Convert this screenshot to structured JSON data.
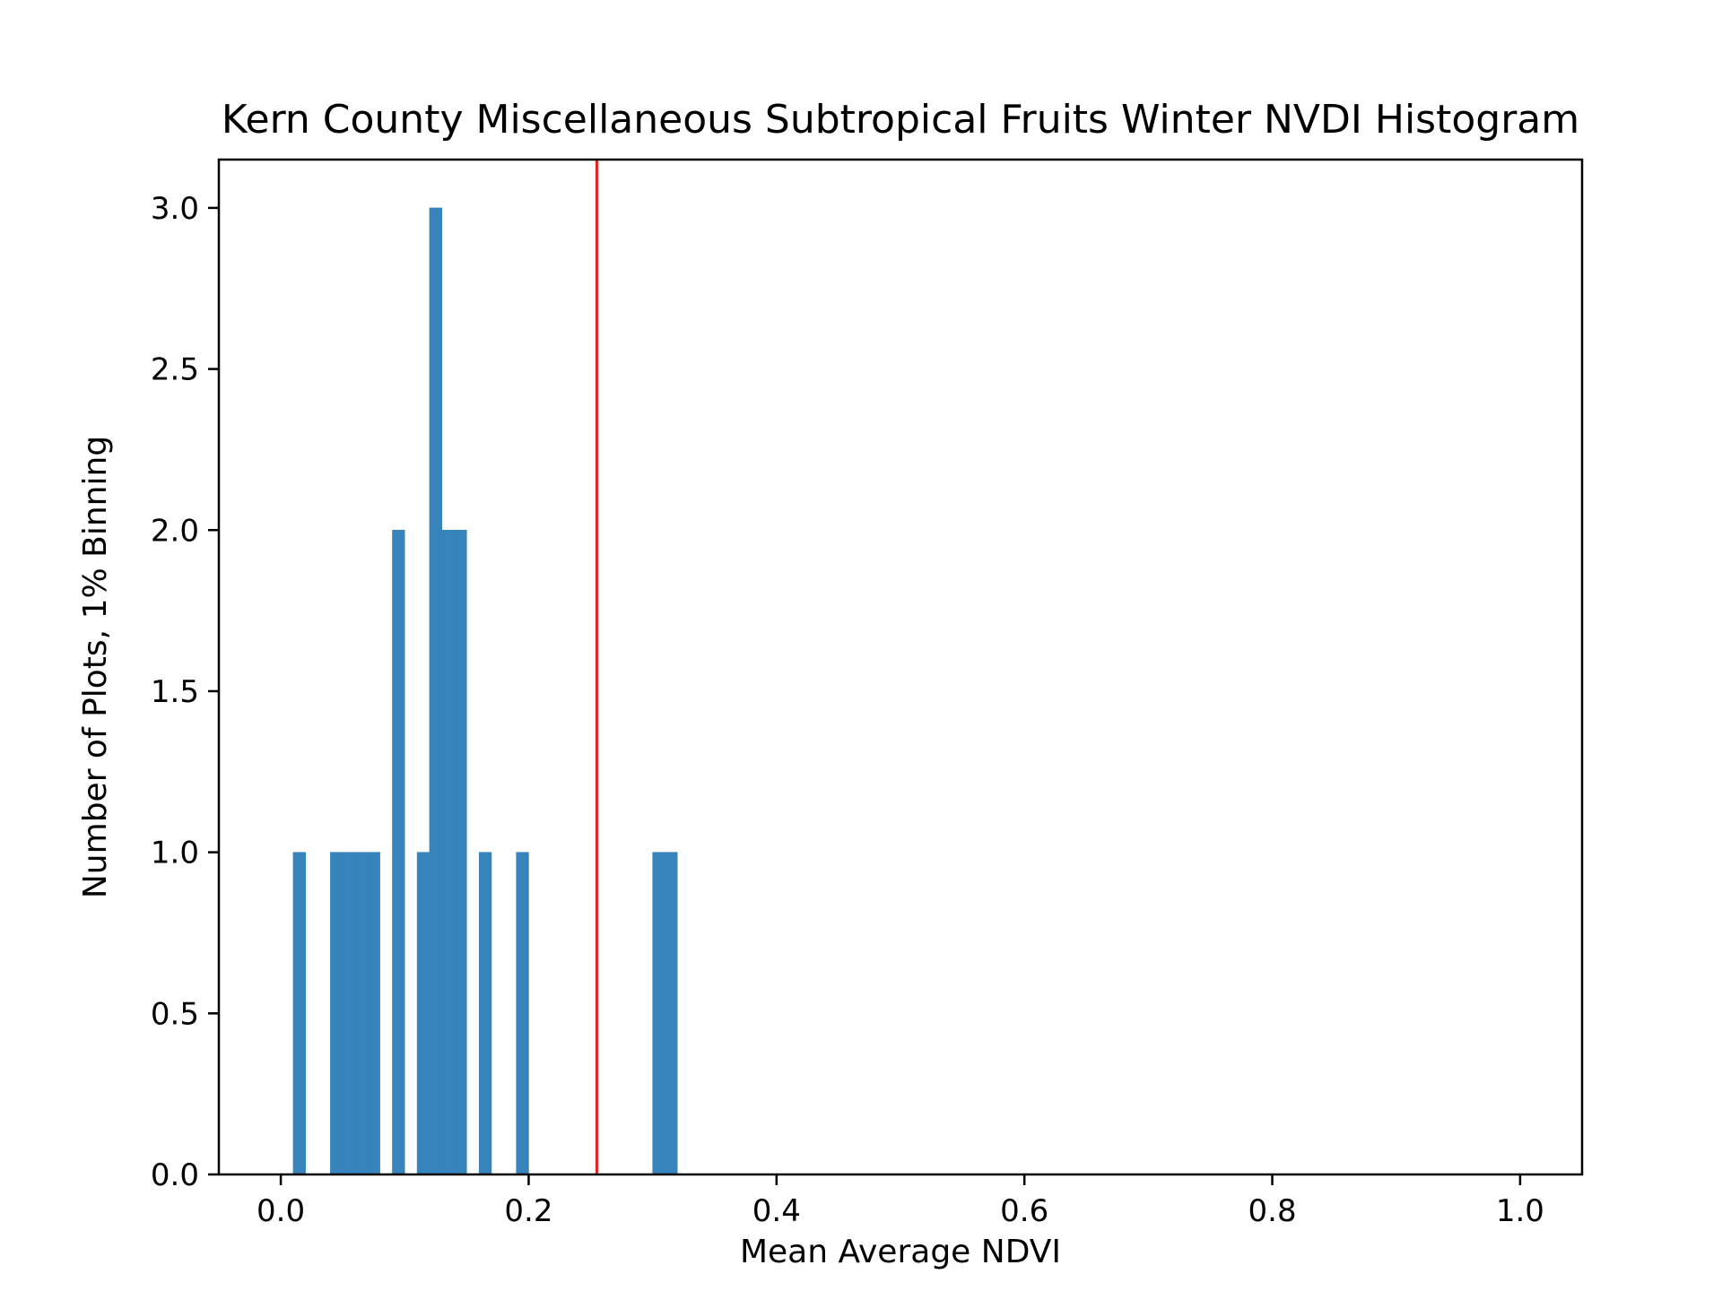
{
  "chart_data": {
    "type": "bar",
    "title": "Kern County Miscellaneous Subtropical Fruits Winter NVDI Histogram",
    "xlabel": "Mean Average NDVI",
    "ylabel": "Number of Plots, 1% Binning",
    "xlim": [
      -0.05,
      1.05
    ],
    "ylim": [
      0,
      3.15
    ],
    "bin_width": 0.01,
    "x_ticks": [
      0.0,
      0.2,
      0.4,
      0.6,
      0.8,
      1.0
    ],
    "x_tick_labels": [
      "0.0",
      "0.2",
      "0.4",
      "0.6",
      "0.8",
      "1.0"
    ],
    "y_ticks": [
      0.0,
      0.5,
      1.0,
      1.5,
      2.0,
      2.5,
      3.0
    ],
    "y_tick_labels": [
      "0.0",
      "0.5",
      "1.0",
      "1.5",
      "2.0",
      "2.5",
      "3.0"
    ],
    "bins": [
      {
        "left": 0.01,
        "count": 1
      },
      {
        "left": 0.04,
        "count": 1
      },
      {
        "left": 0.05,
        "count": 1
      },
      {
        "left": 0.06,
        "count": 1
      },
      {
        "left": 0.07,
        "count": 1
      },
      {
        "left": 0.09,
        "count": 2
      },
      {
        "left": 0.11,
        "count": 1
      },
      {
        "left": 0.12,
        "count": 3
      },
      {
        "left": 0.13,
        "count": 2
      },
      {
        "left": 0.14,
        "count": 2
      },
      {
        "left": 0.16,
        "count": 1
      },
      {
        "left": 0.19,
        "count": 1
      },
      {
        "left": 0.3,
        "count": 1
      },
      {
        "left": 0.31,
        "count": 1
      }
    ],
    "reference_line": {
      "x": 0.255
    },
    "bar_color": "#3783bb",
    "line_color": "#e3251d",
    "grid": false,
    "legend": "none"
  }
}
